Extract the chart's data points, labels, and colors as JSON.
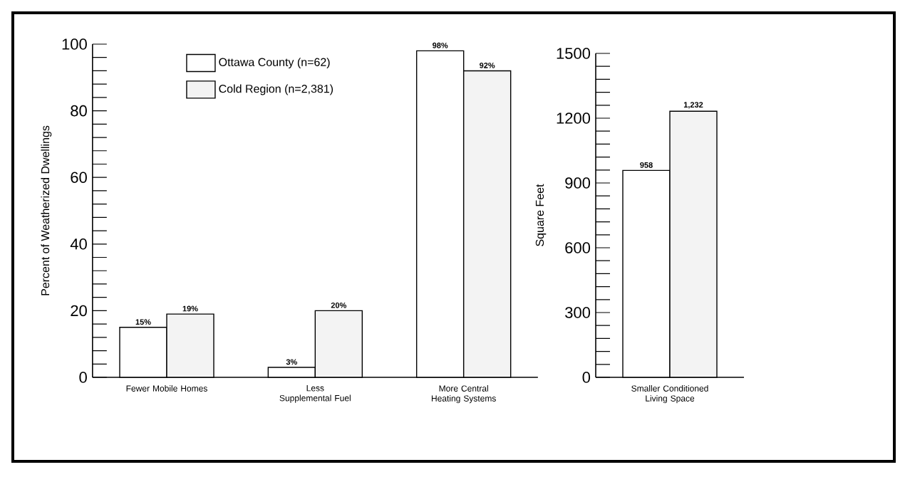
{
  "chart_data": [
    {
      "type": "bar",
      "ylabel": "Percent of Weatherized Dwellings",
      "categories": [
        "Fewer Mobile Homes",
        "Less Supplemental Fuel",
        "More Central Heating Systems"
      ],
      "ylim": [
        0,
        100
      ],
      "yticks": [
        0,
        20,
        40,
        60,
        80,
        100
      ],
      "legend": "top left",
      "series": [
        {
          "name": "Ottawa County (n=62)",
          "color": "#ffffff",
          "values": [
            15,
            3,
            98
          ],
          "value_labels": [
            "15%",
            "3%",
            "98%"
          ]
        },
        {
          "name": "Cold Region (n=2,381)",
          "color": "#f3f3f3",
          "values": [
            19,
            20,
            92
          ],
          "value_labels": [
            "19%",
            "20%",
            "92%"
          ]
        }
      ]
    },
    {
      "type": "bar",
      "ylabel": "Square Feet",
      "categories": [
        "Smaller Conditioned Living Space"
      ],
      "ylim": [
        0,
        1500
      ],
      "yticks": [
        0,
        300,
        600,
        900,
        1200,
        1500
      ],
      "series": [
        {
          "color": "#ffffff",
          "values": [
            958
          ],
          "value_labels": [
            "958"
          ]
        },
        {
          "color": "#f3f3f3",
          "values": [
            1232
          ],
          "value_labels": [
            "1,232"
          ]
        }
      ]
    }
  ]
}
